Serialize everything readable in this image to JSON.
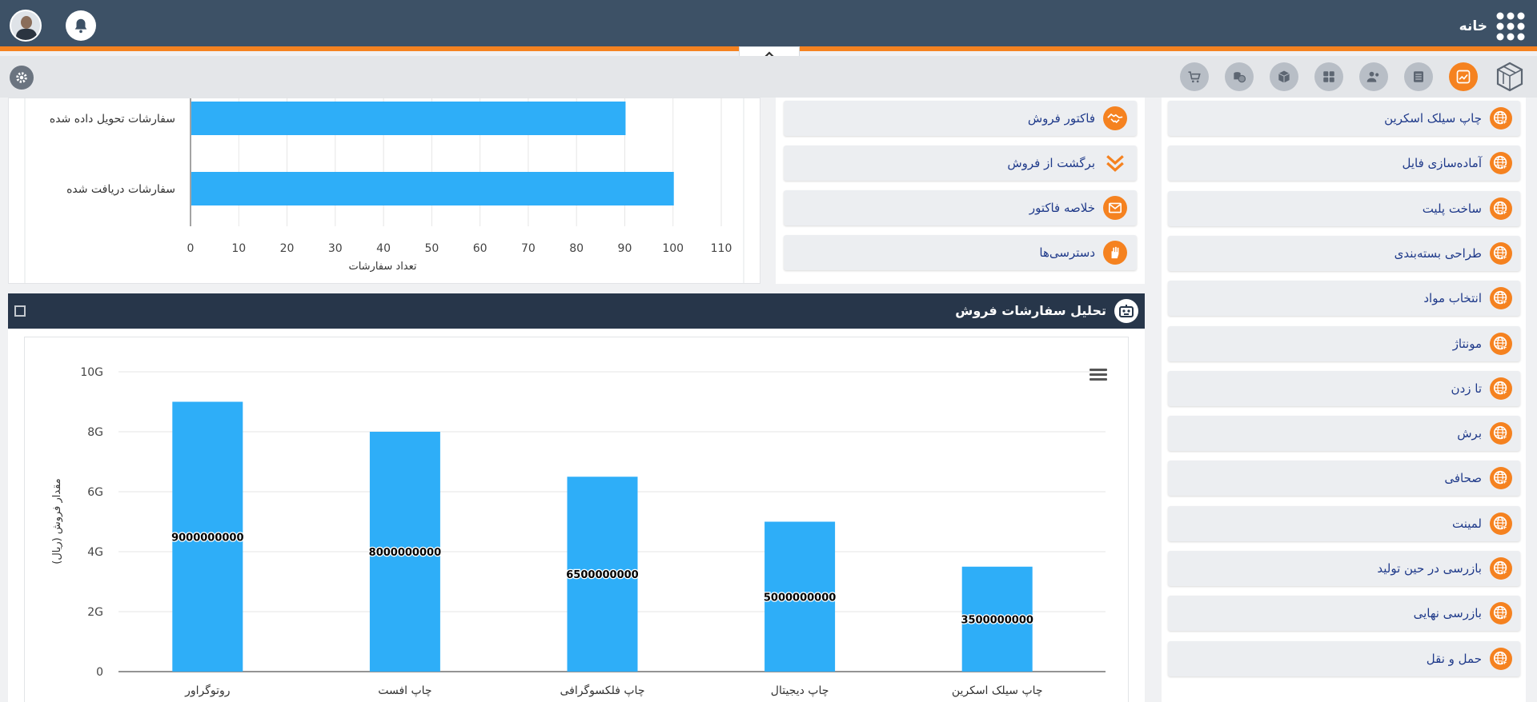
{
  "header": {
    "home_label": "خانه"
  },
  "right_menu": {
    "items": [
      {
        "label": "چاپ سیلک اسکرین"
      },
      {
        "label": "آماده‌سازی فایل"
      },
      {
        "label": "ساخت پلیت"
      },
      {
        "label": "طراحی بسته‌بندی"
      },
      {
        "label": "انتخاب مواد"
      },
      {
        "label": "مونتاژ"
      },
      {
        "label": "تا زدن"
      },
      {
        "label": "برش"
      },
      {
        "label": "صحافی"
      },
      {
        "label": "لمینت"
      },
      {
        "label": "بازرسی در حین تولید"
      },
      {
        "label": "بازرسی نهایی"
      },
      {
        "label": "حمل و نقل"
      }
    ]
  },
  "mid_menu": {
    "items": [
      {
        "label": "فاکتور فروش",
        "icon": "handshake-icon"
      },
      {
        "label": "برگشت از فروش",
        "icon": "double-chevron-down-icon"
      },
      {
        "label": "خلاصه فاکتور",
        "icon": "envelope-icon"
      },
      {
        "label": "دسترسی‌ها",
        "icon": "hand-icon"
      }
    ]
  },
  "sales_panel": {
    "title": "تحلیل سفارشات فروش"
  },
  "colors": {
    "bar": "#2eaef8",
    "accent": "#f58220",
    "header": "#3d5166",
    "panel_header": "#27364a"
  },
  "chart_data": [
    {
      "type": "bar",
      "orientation": "horizontal",
      "categories": [
        "سفارشات تحویل داده شده",
        "سفارشات دریافت شده"
      ],
      "values": [
        90,
        100
      ],
      "xlabel": "تعداد سفارشات",
      "xticks": [
        "0",
        "10",
        "20",
        "30",
        "40",
        "50",
        "60",
        "70",
        "80",
        "90",
        "100",
        "110"
      ],
      "xlim": [
        0,
        110
      ],
      "grid": true
    },
    {
      "type": "bar",
      "orientation": "vertical",
      "categories": [
        "روتوگراور",
        "چاپ افست",
        "چاپ فلکسوگرافی",
        "چاپ دیجیتال",
        "چاپ سیلک اسکرین"
      ],
      "values": [
        9000000000,
        8000000000,
        6500000000,
        5000000000,
        3500000000
      ],
      "data_labels": [
        "9000000000",
        "8000000000",
        "6500000000",
        "5000000000",
        "3500000000"
      ],
      "ylabel": "مقدار فروش (ریال)",
      "yticks": [
        "0",
        "2G",
        "4G",
        "6G",
        "8G",
        "10G"
      ],
      "ylim": [
        0,
        10000000000
      ],
      "grid": true
    }
  ]
}
